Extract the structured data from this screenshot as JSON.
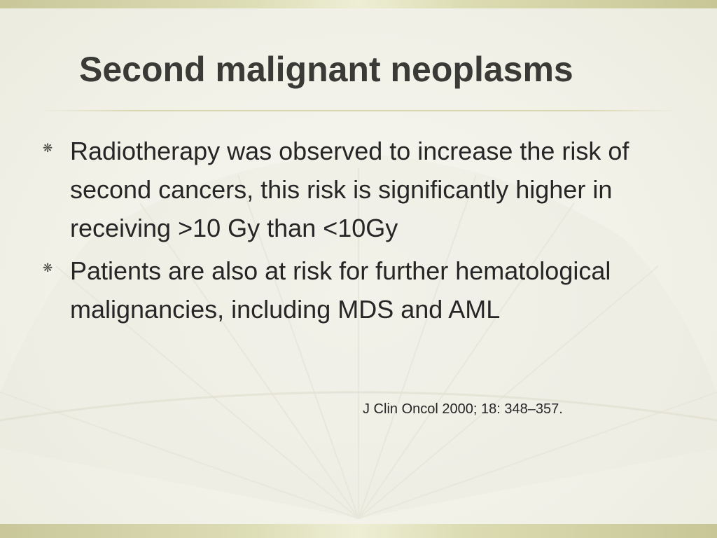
{
  "slide": {
    "title": "Second malignant neoplasms",
    "bullets": [
      {
        "icon": "asterisk-flower-icon",
        "text": "Radiotherapy was observed to increase the risk of second cancers, this risk is significantly higher in receiving >10 Gy than <10Gy"
      },
      {
        "icon": "asterisk-flower-icon",
        "text": "Patients are also at risk for further hematological malignancies, including MDS and AML"
      }
    ],
    "citation": "J Clin Oncol 2000; 18: 348–357."
  },
  "theme": {
    "band_color": "#d4d2a6",
    "title_color": "#3a3a36",
    "text_color": "#262626",
    "background_color": "#f4f3ea"
  }
}
